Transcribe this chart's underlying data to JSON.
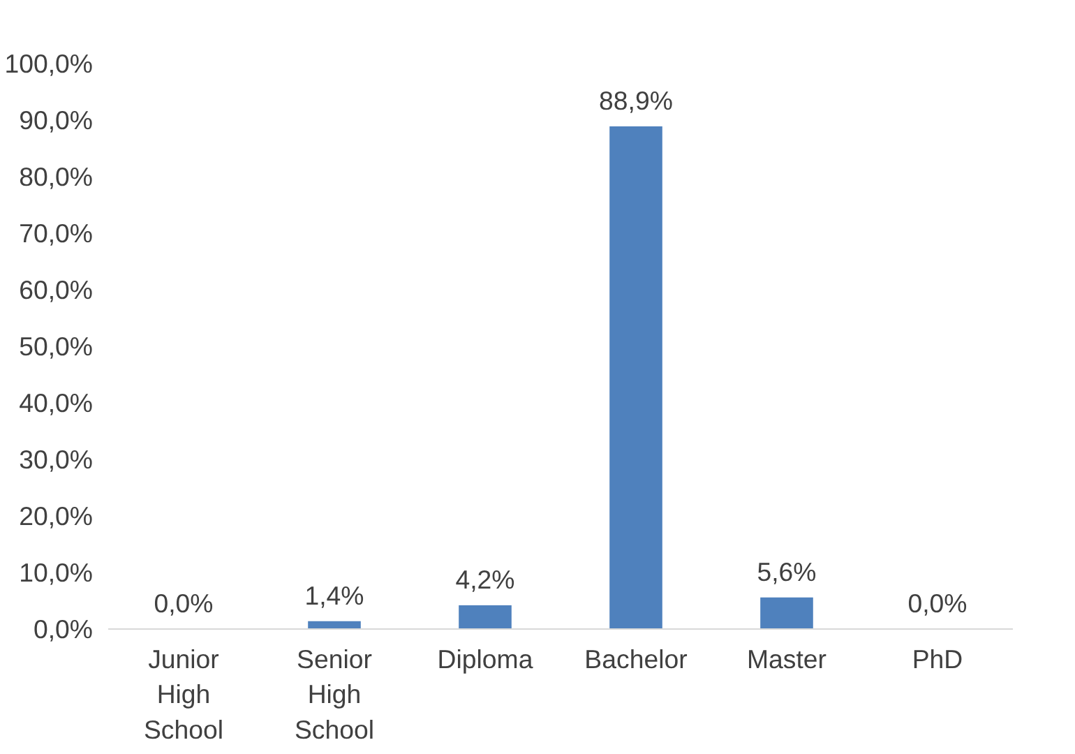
{
  "chart_data": {
    "type": "bar",
    "categories": [
      "Junior High School",
      "Senior High School",
      "Diploma",
      "Bachelor",
      "Master",
      "PhD"
    ],
    "values": [
      0,
      1.4,
      4.2,
      88.9,
      5.6,
      0
    ],
    "value_labels": [
      "0,0%",
      "1,4%",
      "4,2%",
      "88,9%",
      "5,6%",
      "0,0%"
    ],
    "color": "#4f81bd",
    "ylim": [
      0,
      100
    ],
    "yticks": [
      {
        "value": 0,
        "label": "0,0%"
      },
      {
        "value": 10,
        "label": "10,0%"
      },
      {
        "value": 20,
        "label": "20,0%"
      },
      {
        "value": 30,
        "label": "30,0%"
      },
      {
        "value": 40,
        "label": "40,0%"
      },
      {
        "value": 50,
        "label": "50,0%"
      },
      {
        "value": 60,
        "label": "60,0%"
      },
      {
        "value": 70,
        "label": "70,0%"
      },
      {
        "value": 80,
        "label": "80,0%"
      },
      {
        "value": 90,
        "label": "90,0%"
      },
      {
        "value": 100,
        "label": "100,0%"
      }
    ],
    "grid": false
  }
}
